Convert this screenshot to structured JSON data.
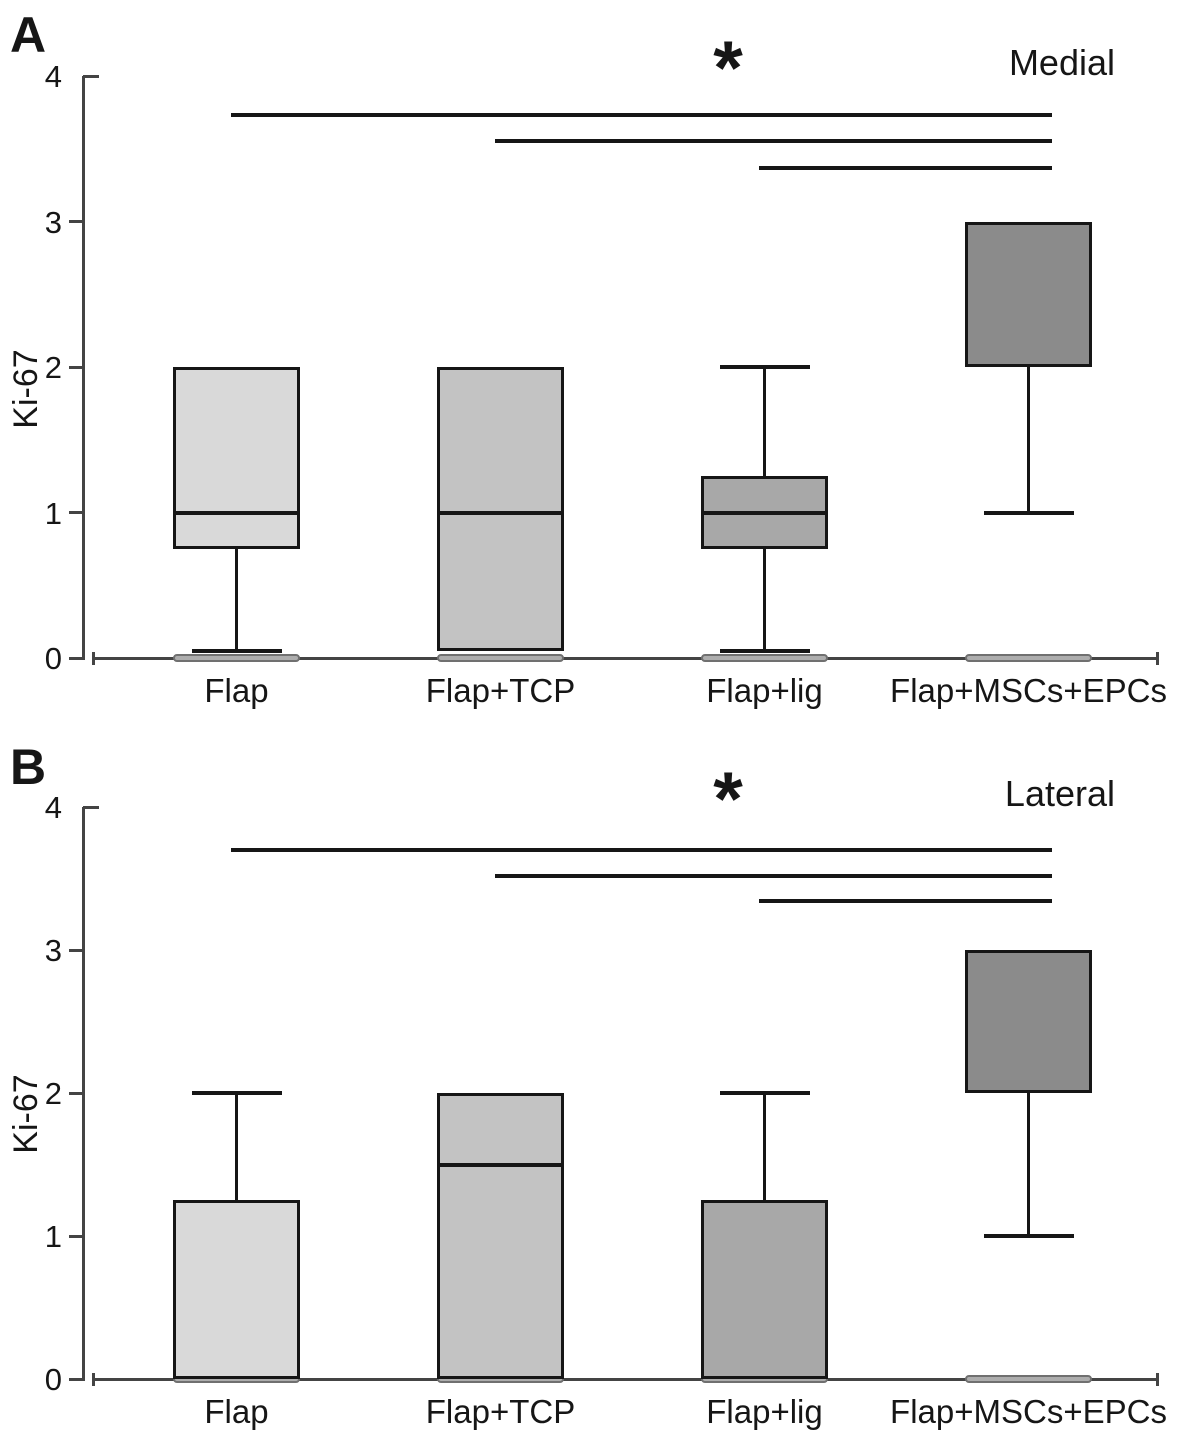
{
  "figure_title": "",
  "chart_data": [
    {
      "type": "box",
      "panel_letter": "A",
      "side_label": "Medial",
      "ylabel": "Ki-67",
      "xlabel": "",
      "ylim": [
        0,
        4
      ],
      "yticks": [
        0,
        1,
        2,
        3,
        4
      ],
      "grid": false,
      "legend": "none",
      "categories": [
        "Flap",
        "Flap+TCP",
        "Flap+lig",
        "Flap+MSCs+EPCs"
      ],
      "boxes": [
        {
          "group": "Flap",
          "q1": 0.75,
          "q3": 2.0,
          "median": 1.0,
          "whisker_low": 0.05,
          "whisker_high": null,
          "fill": "#d9d9d9"
        },
        {
          "group": "Flap+TCP",
          "q1": 0.05,
          "q3": 2.0,
          "median": 1.0,
          "whisker_low": null,
          "whisker_high": null,
          "fill": "#c3c3c3"
        },
        {
          "group": "Flap+lig",
          "q1": 0.75,
          "q3": 1.25,
          "median": 1.0,
          "whisker_low": 0.05,
          "whisker_high": 2.0,
          "fill": "#a8a8a8"
        },
        {
          "group": "Flap+MSCs+EPCs",
          "q1": 2.0,
          "q3": 3.0,
          "median": null,
          "whisker_low": 1.0,
          "whisker_high": null,
          "fill": "#8b8b8b"
        }
      ],
      "baseline_strips_at_zero": true,
      "significance_marker": "*",
      "comparisons": [
        {
          "groups": [
            "Flap",
            "Flap+MSCs+EPCs"
          ]
        },
        {
          "groups": [
            "Flap+TCP",
            "Flap+MSCs+EPCs"
          ]
        },
        {
          "groups": [
            "Flap+lig",
            "Flap+MSCs+EPCs"
          ]
        }
      ]
    },
    {
      "type": "box",
      "panel_letter": "B",
      "side_label": "Lateral",
      "ylabel": "Ki-67",
      "xlabel": "",
      "ylim": [
        0,
        4
      ],
      "yticks": [
        0,
        1,
        2,
        3,
        4
      ],
      "grid": false,
      "legend": "none",
      "categories": [
        "Flap",
        "Flap+TCP",
        "Flap+lig",
        "Flap+MSCs+EPCs"
      ],
      "boxes": [
        {
          "group": "Flap",
          "q1": 0.0,
          "q3": 1.25,
          "median": null,
          "whisker_low": null,
          "whisker_high": 2.0,
          "fill": "#d9d9d9"
        },
        {
          "group": "Flap+TCP",
          "q1": 0.0,
          "q3": 2.0,
          "median": 1.5,
          "whisker_low": null,
          "whisker_high": null,
          "fill": "#c3c3c3"
        },
        {
          "group": "Flap+lig",
          "q1": 0.0,
          "q3": 1.25,
          "median": null,
          "whisker_low": null,
          "whisker_high": 2.0,
          "fill": "#a8a8a8"
        },
        {
          "group": "Flap+MSCs+EPCs",
          "q1": 2.0,
          "q3": 3.0,
          "median": null,
          "whisker_low": 1.0,
          "whisker_high": null,
          "fill": "#8b8b8b"
        }
      ],
      "baseline_strips_at_zero": true,
      "significance_marker": "*",
      "comparisons": [
        {
          "groups": [
            "Flap",
            "Flap+MSCs+EPCs"
          ]
        },
        {
          "groups": [
            "Flap+TCP",
            "Flap+MSCs+EPCs"
          ]
        },
        {
          "groups": [
            "Flap+lig",
            "Flap+MSCs+EPCs"
          ]
        }
      ]
    }
  ],
  "colors": {
    "background": "#ffffff",
    "box_border": "#161616",
    "axis": "#444444",
    "strip_fill": "#adadad",
    "strip_border": "#707070",
    "text": "#161616"
  }
}
